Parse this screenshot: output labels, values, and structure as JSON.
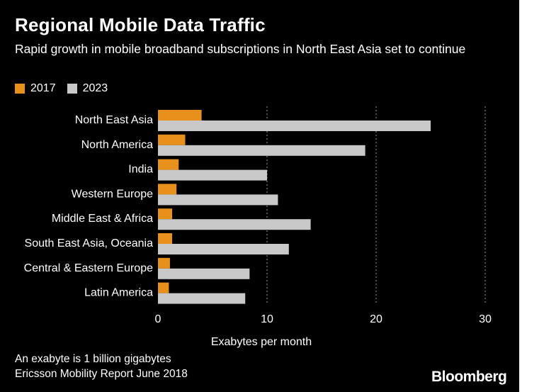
{
  "title": "Regional Mobile Data Traffic",
  "subtitle": "Rapid growth in mobile broadband subscriptions in North East Asia set to continue",
  "note": "An exabyte is 1 billion gigabytes",
  "source": "Ericsson Mobility Report June 2018",
  "brand": "Bloomberg",
  "colors": {
    "s2017": "#e8901c",
    "s2023": "#c8c8c8",
    "background": "#000000",
    "grid": "#9a9a9a"
  },
  "chart_data": {
    "type": "bar",
    "orientation": "horizontal",
    "categories": [
      "North East Asia",
      "North America",
      "India",
      "Western Europe",
      "Middle East & Africa",
      "South East Asia, Oceania",
      "Central & Eastern Europe",
      "Latin America"
    ],
    "series": [
      {
        "name": "2017",
        "values": [
          4,
          2.5,
          1.9,
          1.7,
          1.3,
          1.3,
          1.1,
          1
        ]
      },
      {
        "name": "2023",
        "values": [
          25,
          19,
          10,
          11,
          14,
          12,
          8.4,
          8
        ]
      }
    ],
    "xlabel": "Exabytes per month",
    "xlim": [
      0,
      30
    ],
    "xticks": [
      0,
      10,
      20,
      30
    ],
    "grid": "vertical-dotted",
    "legend": "top-left"
  }
}
